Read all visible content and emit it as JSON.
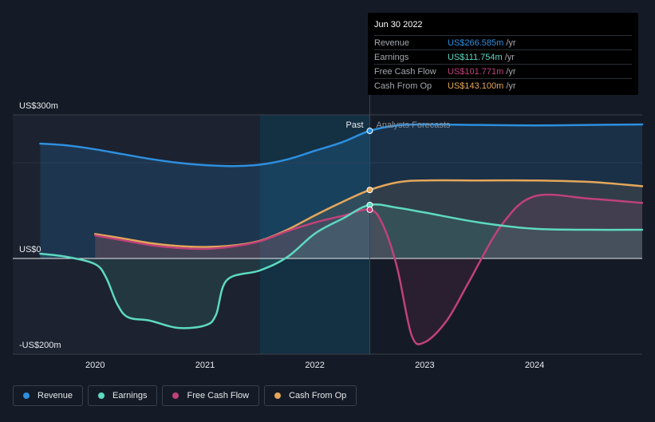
{
  "chart_data": {
    "type": "line",
    "title": "",
    "x_ticks": [
      2020,
      2021,
      2022,
      2023,
      2024
    ],
    "x_tick_labels": [
      "2020",
      "2021",
      "2022",
      "2023",
      "2024"
    ],
    "xlim": [
      2019.25,
      2024.98
    ],
    "ylim": [
      -200,
      300
    ],
    "y_tick_labels": [
      {
        "value": 300,
        "label": "US$300m"
      },
      {
        "value": 0,
        "label": "US$0"
      },
      {
        "value": -200,
        "label": "-US$200m"
      }
    ],
    "past_label": "Past",
    "forecast_label": "Analysts Forecasts",
    "past_end_x": 2022.5,
    "series": [
      {
        "name": "Revenue",
        "color": "#2d8fdf",
        "points": [
          [
            2019.5,
            240
          ],
          [
            2019.75,
            236
          ],
          [
            2020,
            228
          ],
          [
            2020.25,
            218
          ],
          [
            2020.5,
            208
          ],
          [
            2020.75,
            200
          ],
          [
            2021,
            195
          ],
          [
            2021.25,
            193
          ],
          [
            2021.5,
            196
          ],
          [
            2021.75,
            207
          ],
          [
            2022,
            225
          ],
          [
            2022.25,
            243
          ],
          [
            2022.5,
            266.585
          ],
          [
            2022.75,
            278
          ],
          [
            2023,
            280
          ],
          [
            2023.5,
            279
          ],
          [
            2024,
            278
          ],
          [
            2024.5,
            279
          ],
          [
            2024.98,
            280
          ]
        ]
      },
      {
        "name": "Earnings",
        "color": "#5dd9c1",
        "points": [
          [
            2019.5,
            10
          ],
          [
            2019.75,
            3
          ],
          [
            2020,
            -12
          ],
          [
            2020.1,
            -40
          ],
          [
            2020.2,
            -95
          ],
          [
            2020.3,
            -123
          ],
          [
            2020.5,
            -130
          ],
          [
            2020.75,
            -145
          ],
          [
            2021,
            -140
          ],
          [
            2021.1,
            -118
          ],
          [
            2021.2,
            -45
          ],
          [
            2021.5,
            -25
          ],
          [
            2021.75,
            3
          ],
          [
            2022,
            52
          ],
          [
            2022.25,
            83
          ],
          [
            2022.5,
            111.754
          ],
          [
            2022.75,
            106
          ],
          [
            2023,
            96
          ],
          [
            2023.5,
            75
          ],
          [
            2024,
            62
          ],
          [
            2024.5,
            60
          ],
          [
            2024.98,
            60
          ]
        ]
      },
      {
        "name": "Free Cash Flow",
        "color": "#c0417a",
        "points": [
          [
            2020,
            48
          ],
          [
            2020.25,
            38
          ],
          [
            2020.5,
            28
          ],
          [
            2020.75,
            22
          ],
          [
            2021,
            20
          ],
          [
            2021.25,
            25
          ],
          [
            2021.5,
            36
          ],
          [
            2021.75,
            57
          ],
          [
            2022,
            75
          ],
          [
            2022.25,
            89
          ],
          [
            2022.5,
            101.771
          ],
          [
            2022.62,
            70
          ],
          [
            2022.75,
            -20
          ],
          [
            2022.88,
            -160
          ],
          [
            2023,
            -175
          ],
          [
            2023.2,
            -130
          ],
          [
            2023.4,
            -50
          ],
          [
            2023.7,
            70
          ],
          [
            2024,
            130
          ],
          [
            2024.5,
            125
          ],
          [
            2024.98,
            116
          ]
        ]
      },
      {
        "name": "Cash From Op",
        "color": "#e4a75a",
        "points": [
          [
            2020,
            51
          ],
          [
            2020.25,
            42
          ],
          [
            2020.5,
            32
          ],
          [
            2020.75,
            26
          ],
          [
            2021,
            24
          ],
          [
            2021.25,
            27
          ],
          [
            2021.5,
            37
          ],
          [
            2021.75,
            60
          ],
          [
            2022,
            90
          ],
          [
            2022.25,
            118
          ],
          [
            2022.5,
            143.1
          ],
          [
            2022.75,
            159
          ],
          [
            2023,
            163
          ],
          [
            2023.5,
            163
          ],
          [
            2024,
            163
          ],
          [
            2024.5,
            160
          ],
          [
            2024.98,
            151
          ]
        ]
      }
    ]
  },
  "tooltip": {
    "date": "Jun 30 2022",
    "rows": [
      {
        "label": "Revenue",
        "value": "US$266.585m",
        "unit": "/yr",
        "color": "#2d8fdf"
      },
      {
        "label": "Earnings",
        "value": "US$111.754m",
        "unit": "/yr",
        "color": "#5dd9c1"
      },
      {
        "label": "Free Cash Flow",
        "value": "US$101.771m",
        "unit": "/yr",
        "color": "#c0417a"
      },
      {
        "label": "Cash From Op",
        "value": "US$143.100m",
        "unit": "/yr",
        "color": "#e4a75a"
      }
    ]
  },
  "legend": [
    {
      "label": "Revenue",
      "color": "#2d8fdf"
    },
    {
      "label": "Earnings",
      "color": "#5dd9c1"
    },
    {
      "label": "Free Cash Flow",
      "color": "#c0417a"
    },
    {
      "label": "Cash From Op",
      "color": "#e4a75a"
    }
  ]
}
